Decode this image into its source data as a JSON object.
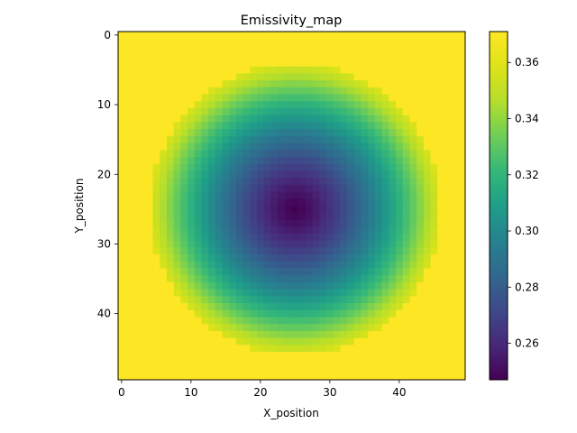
{
  "chart_data": {
    "type": "heatmap",
    "title": "Emissivity_map",
    "xlabel": "X_position",
    "ylabel": "Y_position",
    "grid": false,
    "colormap": "viridis",
    "shape": [
      50,
      50
    ],
    "xlim": [
      -0.5,
      49.5
    ],
    "ylim": [
      49.5,
      -0.5
    ],
    "x_ticks": [
      0,
      10,
      20,
      30,
      40
    ],
    "y_ticks": [
      0,
      10,
      20,
      30,
      40
    ],
    "field": {
      "center": [
        25,
        25
      ],
      "min_value": 0.247,
      "max_value": 0.371,
      "radius": 21.5,
      "description_values": "value rises radially from min at center to max at radius; outside radius constant max"
    },
    "colorbar": {
      "vmin": 0.247,
      "vmax": 0.371,
      "ticks": [
        0.26,
        0.28,
        0.3,
        0.32,
        0.34,
        0.36
      ],
      "tick_labels": [
        "0.26",
        "0.28",
        "0.30",
        "0.32",
        "0.34",
        "0.36"
      ]
    }
  }
}
